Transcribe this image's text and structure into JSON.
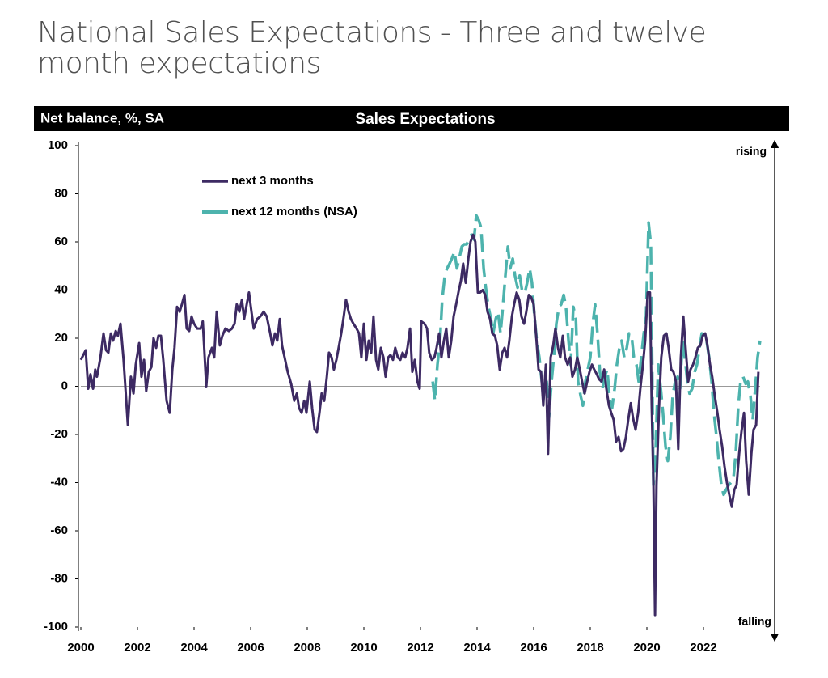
{
  "chart_data": {
    "type": "line",
    "title": "National Sales Expectations - Three and twelve month expectations",
    "subtitle": "Sales Expectations",
    "ylabel": "Net balance, %, SA",
    "annotations": [
      "rising",
      "falling"
    ],
    "xlim": [
      2000,
      2024
    ],
    "xticks": [
      2000,
      2002,
      2004,
      2006,
      2008,
      2010,
      2012,
      2014,
      2016,
      2018,
      2020,
      2022
    ],
    "ylim": [
      -100,
      100
    ],
    "yticks": [
      -100,
      -80,
      -60,
      -40,
      -20,
      0,
      20,
      40,
      60,
      80,
      100
    ],
    "zero_line": true,
    "legend": "upper left",
    "series": [
      {
        "name": "next 3 months",
        "color": "#3d2a63",
        "line_style": "solid",
        "x": [
          2000,
          2000.17,
          2000.26,
          2000.34,
          2000.43,
          2000.51,
          2000.57,
          2000.69,
          2000.8,
          2000.89,
          2000.97,
          2001.06,
          2001.14,
          2001.23,
          2001.31,
          2001.4,
          2001.51,
          2001.66,
          2001.77,
          2001.86,
          2001.94,
          2002.06,
          2002.14,
          2002.23,
          2002.31,
          2002.4,
          2002.49,
          2002.57,
          2002.66,
          2002.74,
          2002.83,
          2002.91,
          2003.03,
          2003.14,
          2003.23,
          2003.31,
          2003.4,
          2003.49,
          2003.57,
          2003.66,
          2003.74,
          2003.83,
          2003.91,
          2004,
          2004.11,
          2004.23,
          2004.31,
          2004.43,
          2004.51,
          2004.63,
          2004.71,
          2004.8,
          2004.91,
          2005,
          2005.11,
          2005.23,
          2005.34,
          2005.43,
          2005.51,
          2005.6,
          2005.69,
          2005.77,
          2005.86,
          2005.94,
          2006.03,
          2006.11,
          2006.23,
          2006.34,
          2006.46,
          2006.57,
          2006.69,
          2006.77,
          2006.86,
          2006.94,
          2007.03,
          2007.11,
          2007.2,
          2007.31,
          2007.43,
          2007.54,
          2007.63,
          2007.71,
          2007.8,
          2007.89,
          2007.97,
          2008.09,
          2008.17,
          2008.26,
          2008.34,
          2008.43,
          2008.51,
          2008.6,
          2008.69,
          2008.77,
          2008.86,
          2008.94,
          2009.03,
          2009.11,
          2009.2,
          2009.29,
          2009.37,
          2009.46,
          2009.54,
          2009.63,
          2009.74,
          2009.83,
          2009.91,
          2010,
          2010.09,
          2010.17,
          2010.26,
          2010.34,
          2010.43,
          2010.51,
          2010.6,
          2010.69,
          2010.77,
          2010.86,
          2010.94,
          2011.03,
          2011.11,
          2011.2,
          2011.29,
          2011.37,
          2011.46,
          2011.54,
          2011.63,
          2011.71,
          2011.8,
          2011.89,
          2011.97,
          2012.03,
          2012.14,
          2012.23,
          2012.31,
          2012.4,
          2012.49,
          2012.57,
          2012.66,
          2012.74,
          2012.83,
          2012.91,
          2013,
          2013.09,
          2013.17,
          2013.26,
          2013.34,
          2013.43,
          2013.51,
          2013.6,
          2013.69,
          2013.77,
          2013.86,
          2013.94,
          2014.03,
          2014.11,
          2014.2,
          2014.29,
          2014.37,
          2014.46,
          2014.54,
          2014.63,
          2014.71,
          2014.8,
          2014.89,
          2014.97,
          2015.06,
          2015.14,
          2015.23,
          2015.31,
          2015.4,
          2015.49,
          2015.57,
          2015.66,
          2015.74,
          2015.83,
          2015.91,
          2016,
          2016.09,
          2016.17,
          2016.26,
          2016.34,
          2016.43,
          2016.51,
          2016.6,
          2016.69,
          2016.77,
          2016.86,
          2016.94,
          2017.03,
          2017.11,
          2017.2,
          2017.29,
          2017.37,
          2017.46,
          2017.54,
          2017.63,
          2017.71,
          2017.8,
          2017.89,
          2017.97,
          2018.06,
          2018.14,
          2018.23,
          2018.31,
          2018.4,
          2018.49,
          2018.57,
          2018.66,
          2018.74,
          2018.83,
          2018.91,
          2019,
          2019.09,
          2019.17,
          2019.26,
          2019.34,
          2019.43,
          2019.51,
          2019.6,
          2019.69,
          2019.77,
          2019.86,
          2019.94,
          2020.03,
          2020.11,
          2020.17,
          2020.23,
          2020.29,
          2020.34,
          2020.43,
          2020.51,
          2020.6,
          2020.69,
          2020.77,
          2020.86,
          2020.94,
          2021.03,
          2021.11,
          2021.2,
          2021.29,
          2021.37,
          2021.46,
          2021.54,
          2021.63,
          2021.71,
          2021.8,
          2021.89,
          2021.97,
          2022.06,
          2022.14,
          2022.23,
          2022.31,
          2022.4,
          2022.49,
          2022.57,
          2022.66,
          2022.74,
          2022.83,
          2022.91,
          2023,
          2023.09,
          2023.17,
          2023.26,
          2023.34,
          2023.43,
          2023.51,
          2023.6,
          2023.69,
          2023.77,
          2023.86,
          2023.94
        ],
        "values": [
          11,
          15,
          -1,
          5,
          -1,
          7,
          4,
          12,
          22,
          15,
          14,
          22,
          19,
          23,
          21,
          26,
          11,
          -16,
          4,
          -3,
          9,
          18,
          4,
          11,
          -2,
          6,
          8,
          20,
          16,
          21,
          21,
          11,
          -6,
          -11,
          7,
          16,
          33,
          31,
          34,
          38,
          24,
          23,
          29,
          26,
          24,
          24,
          27,
          0,
          12,
          16,
          12,
          31,
          17,
          21,
          24,
          23,
          24,
          26,
          34,
          31,
          36,
          28,
          34,
          39,
          31,
          24,
          28,
          29,
          31,
          29,
          22,
          17,
          22,
          19,
          28,
          17,
          12,
          6,
          1,
          -6,
          -3,
          -9,
          -11,
          -6,
          -11,
          2,
          -9,
          -18,
          -19,
          -11,
          -3,
          -6,
          4,
          14,
          12,
          7,
          11,
          16,
          22,
          29,
          36,
          31,
          28,
          26,
          24,
          22,
          12,
          26,
          11,
          19,
          14,
          29,
          11,
          7,
          16,
          12,
          4,
          12,
          13,
          11,
          16,
          12,
          11,
          14,
          12,
          16,
          24,
          6,
          11,
          2,
          -1,
          27,
          26,
          24,
          14,
          11,
          12,
          16,
          22,
          12,
          19,
          24,
          12,
          19,
          29,
          34,
          39,
          44,
          51,
          43,
          53,
          60,
          63,
          60,
          39,
          39,
          40,
          38,
          31,
          28,
          22,
          21,
          17,
          7,
          14,
          16,
          12,
          19,
          29,
          34,
          39,
          36,
          29,
          26,
          31,
          38,
          37,
          34,
          21,
          7,
          6,
          -8,
          9,
          -28,
          12,
          17,
          24,
          16,
          12,
          21,
          12,
          9,
          12,
          4,
          7,
          12,
          7,
          2,
          -3,
          2,
          6,
          9,
          7,
          5,
          3,
          2,
          7,
          -1,
          -8,
          -11,
          -14,
          -23,
          -21,
          -27,
          -26,
          -21,
          -14,
          -7,
          -13,
          -18,
          -11,
          -1,
          9,
          19,
          39,
          39,
          -8,
          -41,
          -95,
          -41,
          -8,
          12,
          21,
          22,
          16,
          7,
          6,
          2,
          -26,
          12,
          29,
          16,
          2,
          7,
          9,
          12,
          16,
          17,
          21,
          22,
          17,
          9,
          4,
          -4,
          -11,
          -18,
          -25,
          -33,
          -40,
          -45,
          -50,
          -43,
          -41,
          -28,
          -19,
          -11,
          -31,
          -45,
          -28,
          -18,
          -16,
          6
        ]
      },
      {
        "name": "next 12 months (NSA)",
        "color": "#4db3ad",
        "line_style": "dashed",
        "x": [
          2012.43,
          2012.51,
          2012.6,
          2012.69,
          2012.77,
          2012.86,
          2012.94,
          2013.03,
          2013.11,
          2013.2,
          2013.29,
          2013.37,
          2013.46,
          2013.54,
          2013.63,
          2013.71,
          2013.8,
          2013.89,
          2013.97,
          2014.06,
          2014.14,
          2014.23,
          2014.31,
          2014.4,
          2014.49,
          2014.57,
          2014.66,
          2014.74,
          2014.83,
          2014.91,
          2015,
          2015.09,
          2015.17,
          2015.26,
          2015.34,
          2015.43,
          2015.51,
          2015.6,
          2015.69,
          2015.77,
          2015.86,
          2015.94,
          2016.03,
          2016.11,
          2016.2,
          2016.29,
          2016.37,
          2016.46,
          2016.54,
          2016.63,
          2016.71,
          2016.8,
          2016.89,
          2016.97,
          2017.06,
          2017.14,
          2017.23,
          2017.31,
          2017.4,
          2017.49,
          2017.57,
          2017.66,
          2017.74,
          2017.83,
          2017.91,
          2018,
          2018.09,
          2018.17,
          2018.26,
          2018.34,
          2018.43,
          2018.51,
          2018.6,
          2018.69,
          2018.77,
          2018.86,
          2018.94,
          2019.03,
          2019.11,
          2019.2,
          2019.29,
          2019.37,
          2019.46,
          2019.54,
          2019.63,
          2019.71,
          2019.8,
          2019.89,
          2019.97,
          2020.06,
          2020.14,
          2020.23,
          2020.31,
          2020.4,
          2020.49,
          2020.57,
          2020.66,
          2020.74,
          2020.83,
          2020.91,
          2021,
          2021.09,
          2021.17,
          2021.26,
          2021.34,
          2021.43,
          2021.51,
          2021.6,
          2021.69,
          2021.77,
          2021.86,
          2021.94,
          2022.03,
          2022.11,
          2022.2,
          2022.29,
          2022.37,
          2022.46,
          2022.54,
          2022.63,
          2022.71,
          2022.8,
          2022.89,
          2022.97,
          2023.06,
          2023.14,
          2023.23,
          2023.31,
          2023.4,
          2023.49,
          2023.57,
          2023.66,
          2023.74,
          2023.83,
          2023.91,
          2024
        ],
        "values": [
          2,
          -6,
          9,
          19,
          36,
          46,
          49,
          51,
          53,
          56,
          49,
          53,
          58,
          59,
          59,
          61,
          63,
          61,
          71,
          69,
          66,
          49,
          41,
          33,
          28,
          22,
          28,
          31,
          22,
          33,
          46,
          58,
          49,
          53,
          46,
          41,
          46,
          39,
          39,
          43,
          49,
          43,
          29,
          19,
          12,
          2,
          -1,
          2,
          -13,
          2,
          12,
          26,
          33,
          34,
          38,
          33,
          19,
          9,
          33,
          28,
          2,
          -4,
          -8,
          2,
          7,
          12,
          26,
          34,
          21,
          6,
          -1,
          4,
          7,
          -6,
          -9,
          -1,
          9,
          16,
          19,
          12,
          16,
          22,
          21,
          12,
          9,
          2,
          12,
          22,
          29,
          68,
          59,
          -41,
          -28,
          9,
          -1,
          -11,
          -25,
          -31,
          -21,
          -4,
          2,
          4,
          -1,
          19,
          12,
          2,
          -3,
          -1,
          6,
          9,
          16,
          22,
          19,
          19,
          12,
          2,
          -11,
          -21,
          -31,
          -41,
          -45,
          -43,
          -41,
          -40,
          -38,
          -28,
          -8,
          2,
          4,
          1,
          2,
          -4,
          -14,
          -1,
          12,
          19
        ]
      }
    ]
  }
}
